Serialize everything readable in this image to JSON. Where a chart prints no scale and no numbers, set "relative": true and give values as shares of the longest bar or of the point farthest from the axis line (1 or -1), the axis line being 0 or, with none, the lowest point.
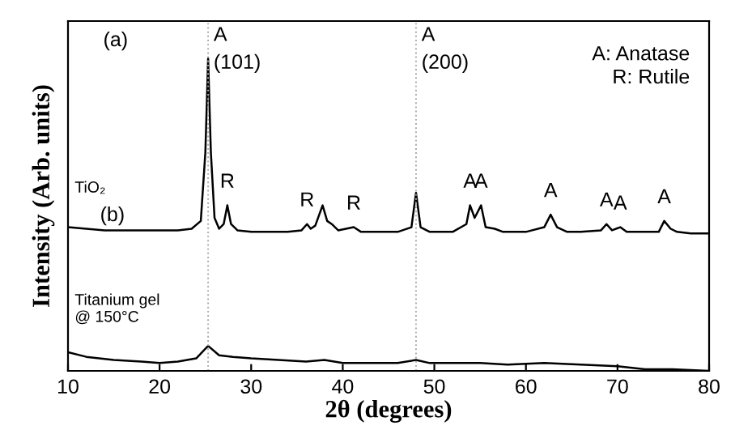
{
  "chart_data": {
    "type": "line",
    "relative": true,
    "xlabel": "2θ (degrees)",
    "ylabel": "Intensity (Arb. units)",
    "xlim": [
      10,
      80
    ],
    "xticks": [
      10,
      20,
      30,
      40,
      50,
      60,
      70,
      80
    ],
    "tick_labels": "x",
    "grid": false,
    "legend": false,
    "marker": "none",
    "line_style": "solid",
    "series": [
      {
        "name": "TiO₂",
        "color": "#000000",
        "x": [
          10,
          12,
          14,
          16,
          18,
          20,
          22,
          23.5,
          24.5,
          25.0,
          25.3,
          25.6,
          26.0,
          26.5,
          27.0,
          27.4,
          27.8,
          28.5,
          30,
          32,
          34,
          35.5,
          36.1,
          36.5,
          37.0,
          37.8,
          38.3,
          38.8,
          39.5,
          41.2,
          42,
          44,
          46,
          47.5,
          48.0,
          48.5,
          49.5,
          52,
          53.5,
          53.9,
          54.4,
          55.1,
          55.6,
          56.6,
          57.5,
          60,
          62,
          62.7,
          63.4,
          64.5,
          66,
          68.2,
          68.8,
          69.4,
          70.3,
          71,
          74.5,
          75.1,
          75.8,
          76.5,
          78,
          80
        ],
        "values": [
          0.46,
          0.455,
          0.45,
          0.45,
          0.45,
          0.45,
          0.45,
          0.455,
          0.48,
          0.7,
          1.0,
          0.7,
          0.49,
          0.455,
          0.47,
          0.53,
          0.47,
          0.45,
          0.445,
          0.445,
          0.445,
          0.45,
          0.47,
          0.455,
          0.465,
          0.53,
          0.48,
          0.47,
          0.45,
          0.46,
          0.445,
          0.445,
          0.445,
          0.46,
          0.57,
          0.46,
          0.445,
          0.445,
          0.47,
          0.53,
          0.49,
          0.53,
          0.46,
          0.455,
          0.445,
          0.445,
          0.46,
          0.5,
          0.46,
          0.445,
          0.445,
          0.45,
          0.47,
          0.45,
          0.46,
          0.445,
          0.445,
          0.48,
          0.455,
          0.445,
          0.44,
          0.44
        ]
      },
      {
        "name": "Titanium gel\n@ 150°C",
        "color": "#000000",
        "x": [
          10,
          12,
          15,
          18,
          20,
          22,
          24,
          25.3,
          26.5,
          28,
          30,
          33,
          36,
          38,
          40,
          43,
          46,
          48,
          49.5,
          52,
          55,
          58,
          62,
          66,
          70,
          73,
          76,
          80
        ],
        "values": [
          0.06,
          0.045,
          0.035,
          0.03,
          0.025,
          0.03,
          0.04,
          0.08,
          0.05,
          0.045,
          0.04,
          0.035,
          0.03,
          0.035,
          0.025,
          0.025,
          0.025,
          0.035,
          0.025,
          0.025,
          0.025,
          0.02,
          0.025,
          0.02,
          0.015,
          0.005,
          0.005,
          0.0
        ]
      }
    ],
    "ref_lines": [
      {
        "axis": "x",
        "value": 25.3,
        "label": "A\n(101)",
        "color": "#aaaaaa",
        "line_style": "dotted"
      },
      {
        "axis": "x",
        "value": 48.0,
        "label": "A\n(200)",
        "color": "#aaaaaa",
        "line_style": "dotted"
      }
    ],
    "annotations": [
      "(a)",
      "(b)",
      "A: Anatase\nR: Rutile",
      {
        "text": "R",
        "x": 27.4,
        "y": 0.53
      },
      {
        "text": "R",
        "x": 36.1,
        "y": 0.47
      },
      {
        "text": "R",
        "x": 41.2,
        "y": 0.46
      },
      {
        "text": "A",
        "x": 53.9,
        "y": 0.53
      },
      {
        "text": "A",
        "x": 55.1,
        "y": 0.53
      },
      {
        "text": "A",
        "x": 62.7,
        "y": 0.5
      },
      {
        "text": "A",
        "x": 68.8,
        "y": 0.47
      },
      {
        "text": "A",
        "x": 70.3,
        "y": 0.46
      },
      {
        "text": "A",
        "x": 75.1,
        "y": 0.48
      }
    ]
  }
}
